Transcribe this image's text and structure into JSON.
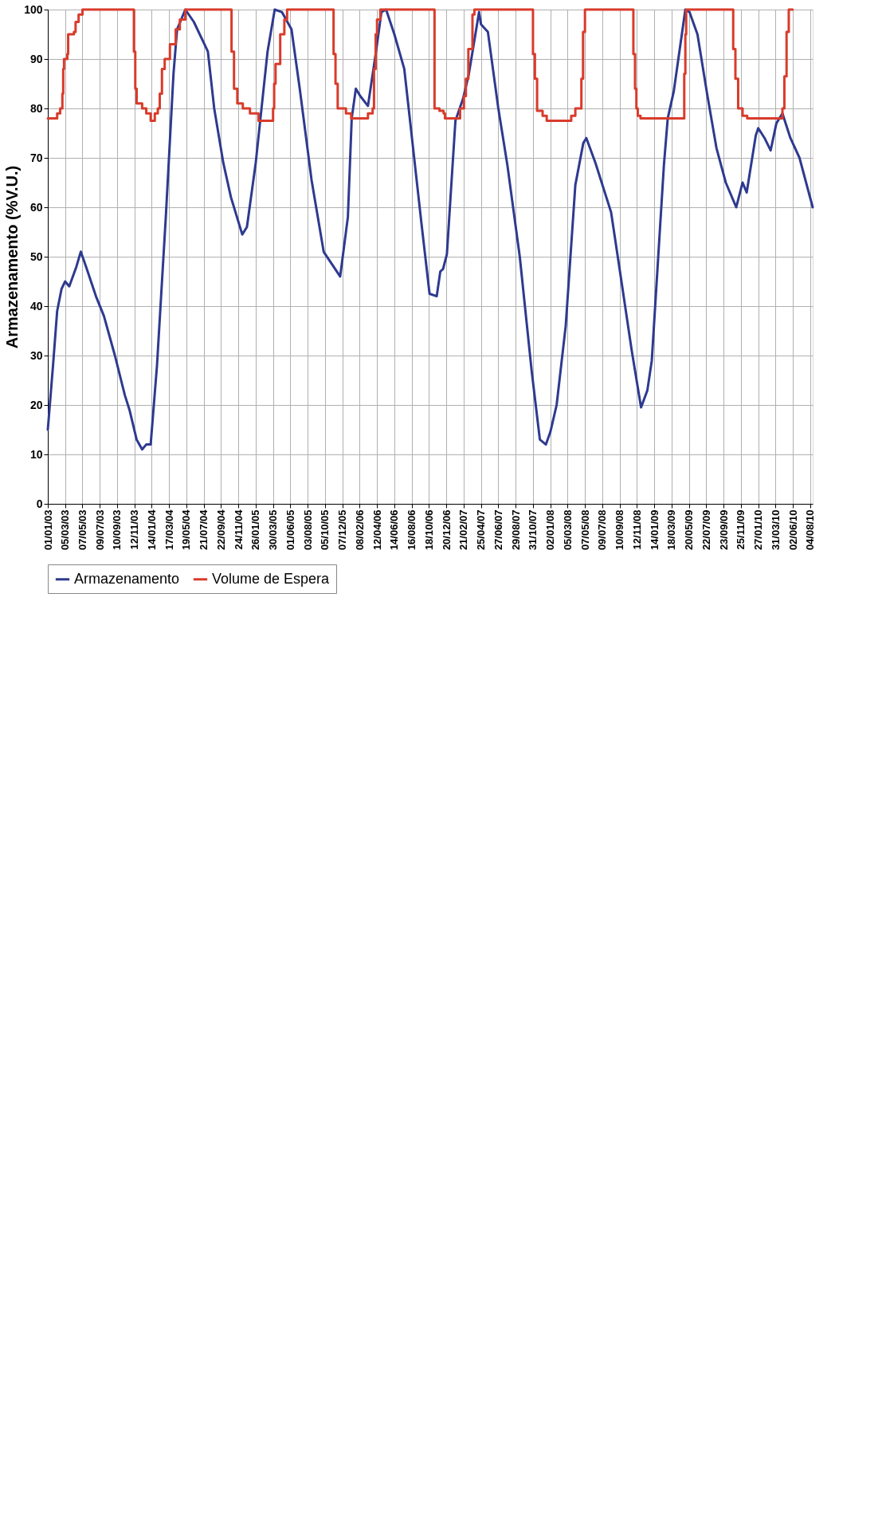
{
  "chart_data": {
    "type": "line",
    "xlabel": null,
    "ylabel": "Armazenamento (%V.U.)",
    "xlim": [
      "2003-01-01",
      "2010-08-13"
    ],
    "xticks": [
      {
        "value": "2003-01-01",
        "label": "01/01/03"
      },
      {
        "value": "2003-03-05",
        "label": "05/03/03"
      },
      {
        "value": "2003-05-07",
        "label": "07/05/03"
      },
      {
        "value": "2003-07-09",
        "label": "09/07/03"
      },
      {
        "value": "2003-09-10",
        "label": "10/09/03"
      },
      {
        "value": "2003-11-12",
        "label": "12/11/03"
      },
      {
        "value": "2004-01-14",
        "label": "14/01/04"
      },
      {
        "value": "2004-03-17",
        "label": "17/03/04"
      },
      {
        "value": "2004-05-19",
        "label": "19/05/04"
      },
      {
        "value": "2004-07-21",
        "label": "21/07/04"
      },
      {
        "value": "2004-09-22",
        "label": "22/09/04"
      },
      {
        "value": "2004-11-24",
        "label": "24/11/04"
      },
      {
        "value": "2005-01-26",
        "label": "26/01/05"
      },
      {
        "value": "2005-03-30",
        "label": "30/03/05"
      },
      {
        "value": "2005-06-01",
        "label": "01/06/05"
      },
      {
        "value": "2005-08-03",
        "label": "03/08/05"
      },
      {
        "value": "2005-10-05",
        "label": "05/10/05"
      },
      {
        "value": "2005-12-07",
        "label": "07/12/05"
      },
      {
        "value": "2006-02-08",
        "label": "08/02/06"
      },
      {
        "value": "2006-04-12",
        "label": "12/04/06"
      },
      {
        "value": "2006-06-14",
        "label": "14/06/06"
      },
      {
        "value": "2006-08-16",
        "label": "16/08/06"
      },
      {
        "value": "2006-10-18",
        "label": "18/10/06"
      },
      {
        "value": "2006-12-20",
        "label": "20/12/06"
      },
      {
        "value": "2007-02-21",
        "label": "21/02/07"
      },
      {
        "value": "2007-04-25",
        "label": "25/04/07"
      },
      {
        "value": "2007-06-27",
        "label": "27/06/07"
      },
      {
        "value": "2007-08-29",
        "label": "29/08/07"
      },
      {
        "value": "2007-10-31",
        "label": "31/10/07"
      },
      {
        "value": "2008-01-02",
        "label": "02/01/08"
      },
      {
        "value": "2008-03-05",
        "label": "05/03/08"
      },
      {
        "value": "2008-05-07",
        "label": "07/05/08"
      },
      {
        "value": "2008-07-09",
        "label": "09/07/08"
      },
      {
        "value": "2008-09-10",
        "label": "10/09/08"
      },
      {
        "value": "2008-11-12",
        "label": "12/11/08"
      },
      {
        "value": "2009-01-14",
        "label": "14/01/09"
      },
      {
        "value": "2009-03-18",
        "label": "18/03/09"
      },
      {
        "value": "2009-05-20",
        "label": "20/05/09"
      },
      {
        "value": "2009-07-22",
        "label": "22/07/09"
      },
      {
        "value": "2009-09-23",
        "label": "23/09/09"
      },
      {
        "value": "2009-11-25",
        "label": "25/11/09"
      },
      {
        "value": "2010-01-27",
        "label": "27/01/10"
      },
      {
        "value": "2010-03-31",
        "label": "31/03/10"
      },
      {
        "value": "2010-06-02",
        "label": "02/06/10"
      },
      {
        "value": "2010-08-04",
        "label": "04/08/10"
      }
    ],
    "ylim": [
      0,
      100
    ],
    "yticks": [
      0,
      10,
      20,
      30,
      40,
      50,
      60,
      70,
      80,
      90,
      100
    ],
    "grid": true,
    "legend": "bottom",
    "line_style": "solid",
    "series": [
      {
        "name": "Armazenamento",
        "color": "#2e3a8f",
        "type": "line",
        "x": [
          "2003-01-01",
          "2003-01-20",
          "2003-02-04",
          "2003-02-20",
          "2003-03-05",
          "2003-03-20",
          "2003-04-15",
          "2003-05-01",
          "2003-05-20",
          "2003-06-25",
          "2003-07-24",
          "2003-09-02",
          "2003-10-08",
          "2003-10-25",
          "2003-11-20",
          "2003-12-10",
          "2003-12-25",
          "2004-01-10",
          "2004-02-02",
          "2004-03-05",
          "2004-04-02",
          "2004-04-15",
          "2004-05-15",
          "2004-06-15",
          "2004-08-05",
          "2004-08-28",
          "2004-09-30",
          "2004-10-28",
          "2004-12-08",
          "2004-12-25",
          "2005-01-26",
          "2005-03-10",
          "2005-04-05",
          "2005-05-01",
          "2005-06-05",
          "2005-07-05",
          "2005-08-17",
          "2005-09-30",
          "2005-11-29",
          "2005-12-27",
          "2006-01-10",
          "2006-01-25",
          "2006-02-10",
          "2006-03-10",
          "2006-04-07",
          "2006-04-28",
          "2006-05-15",
          "2006-06-14",
          "2006-07-20",
          "2006-09-20",
          "2006-10-20",
          "2006-11-15",
          "2006-11-28",
          "2006-12-08",
          "2006-12-22",
          "2007-01-22",
          "2007-02-19",
          "2007-03-12",
          "2007-04-18",
          "2007-04-25",
          "2007-05-20",
          "2007-06-27",
          "2007-07-30",
          "2007-09-13",
          "2007-10-26",
          "2007-11-25",
          "2007-12-17",
          "2008-01-02",
          "2008-01-25",
          "2008-02-27",
          "2008-04-02",
          "2008-05-01",
          "2008-05-12",
          "2008-06-14",
          "2008-08-10",
          "2008-09-10",
          "2008-10-24",
          "2008-11-27",
          "2008-12-20",
          "2009-01-05",
          "2009-02-18",
          "2009-03-04",
          "2009-03-26",
          "2009-05-07",
          "2009-05-22",
          "2009-06-20",
          "2009-07-25",
          "2009-08-28",
          "2009-10-01",
          "2009-11-08",
          "2009-12-01",
          "2009-12-16",
          "2010-01-18",
          "2010-01-27",
          "2010-02-19",
          "2010-03-13",
          "2010-04-03",
          "2010-04-25",
          "2010-05-24",
          "2010-06-26",
          "2010-08-13"
        ],
        "values": [
          15,
          28,
          39,
          43.5,
          45,
          44,
          48,
          51,
          48,
          42,
          38,
          30,
          22,
          19,
          13,
          11,
          12,
          12,
          28,
          58,
          87,
          96,
          100,
          97.5,
          91.5,
          80,
          69,
          62,
          54.5,
          56,
          69,
          91.5,
          100,
          99.5,
          96,
          84,
          65.5,
          51,
          46,
          58,
          78,
          84,
          82.5,
          80.5,
          91,
          99.5,
          100,
          95,
          88,
          57,
          42.5,
          42,
          47,
          47.5,
          50.5,
          77.5,
          82,
          87,
          99.5,
          97,
          95.5,
          80,
          68.5,
          50,
          27,
          13,
          12,
          14.5,
          20,
          36,
          64.5,
          73,
          74,
          69,
          59,
          47.5,
          31,
          19.5,
          23,
          29,
          68.5,
          78,
          83.5,
          100,
          99.5,
          95,
          83,
          72,
          65,
          60,
          65,
          63,
          74.5,
          76,
          74,
          71.5,
          77,
          79,
          74,
          70,
          60
        ]
      },
      {
        "name": "Volume de Espera",
        "color": "#d93b2b",
        "type": "step",
        "x": [
          "2003-01-01",
          "2003-02-04",
          "2003-02-15",
          "2003-02-23",
          "2003-02-26",
          "2003-03-01",
          "2003-03-13",
          "2003-03-16",
          "2003-04-06",
          "2003-04-12",
          "2003-04-23",
          "2003-05-07",
          "2003-11-10",
          "2003-11-15",
          "2003-11-20",
          "2003-12-10",
          "2003-12-25",
          "2004-01-10",
          "2004-01-25",
          "2004-02-05",
          "2004-02-12",
          "2004-02-20",
          "2004-03-01",
          "2004-03-20",
          "2004-04-10",
          "2004-04-25",
          "2004-05-15",
          "2004-10-30",
          "2004-11-08",
          "2004-11-20",
          "2004-12-10",
          "2005-01-05",
          "2005-02-05",
          "2005-03-30",
          "2005-04-03",
          "2005-04-08",
          "2005-04-25",
          "2005-05-10",
          "2005-05-20",
          "2005-11-05",
          "2005-11-12",
          "2005-11-20",
          "2005-12-20",
          "2006-01-08",
          "2006-03-10",
          "2006-03-27",
          "2006-04-01",
          "2006-04-07",
          "2006-04-12",
          "2006-04-24",
          "2006-11-07",
          "2006-11-25",
          "2006-12-10",
          "2006-12-15",
          "2007-02-08",
          "2007-02-22",
          "2007-03-01",
          "2007-03-10",
          "2007-03-25",
          "2007-04-01",
          "2007-10-31",
          "2007-11-07",
          "2007-11-15",
          "2007-12-05",
          "2007-12-20",
          "2008-03-18",
          "2008-04-02",
          "2008-04-24",
          "2008-04-30",
          "2008-05-07",
          "2008-10-30",
          "2008-11-05",
          "2008-11-10",
          "2008-11-15",
          "2008-11-25",
          "2009-05-03",
          "2009-05-07",
          "2009-05-10",
          "2009-10-28",
          "2009-11-05",
          "2009-11-15",
          "2009-12-01",
          "2009-12-18",
          "2010-04-25",
          "2010-05-02",
          "2010-05-10",
          "2010-05-18",
          "2010-06-01"
        ],
        "values": [
          78,
          79,
          80,
          83,
          88,
          90,
          91,
          95,
          95.5,
          97.5,
          99,
          100,
          91.5,
          84,
          81,
          80,
          79,
          77.5,
          79,
          80,
          83,
          88,
          90,
          93,
          96,
          98,
          100,
          91.5,
          84,
          81,
          80,
          79,
          77.5,
          80,
          85,
          89,
          95,
          98,
          100,
          91,
          85,
          80,
          79,
          78,
          79,
          80,
          88,
          95,
          98,
          100,
          80,
          79.5,
          79,
          78,
          80,
          82.5,
          86,
          92,
          99,
          100,
          91,
          86,
          79.5,
          78.5,
          77.5,
          78.5,
          80,
          86,
          95.5,
          100,
          91,
          84,
          80,
          78.5,
          78,
          87,
          95,
          100,
          92,
          86,
          80,
          78.5,
          78,
          80,
          86.5,
          95.5,
          100,
          100
        ]
      }
    ]
  }
}
